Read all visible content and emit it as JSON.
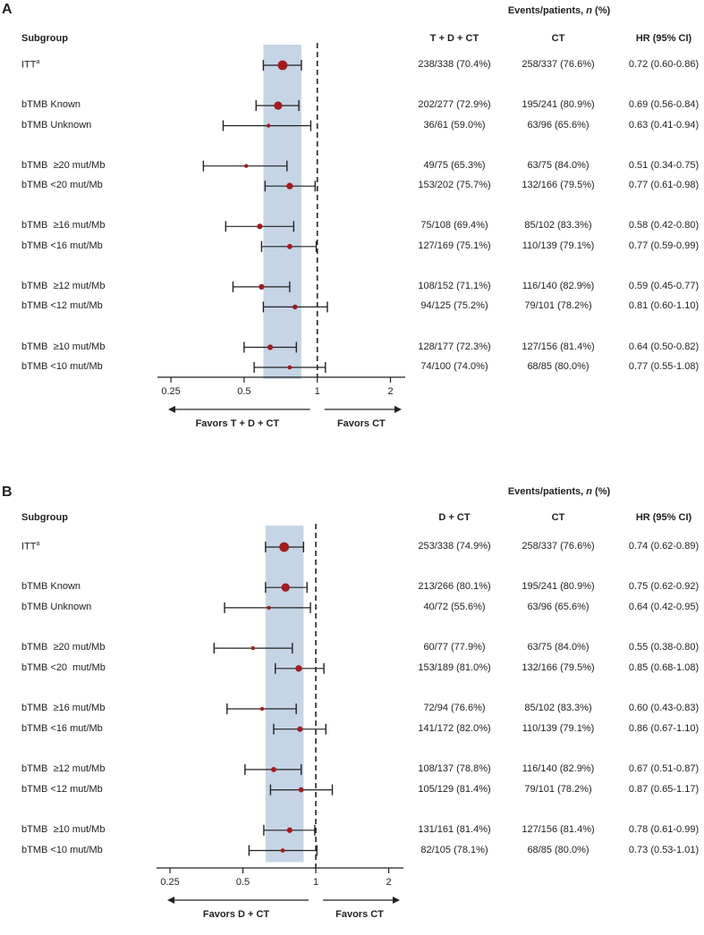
{
  "chart_data": [
    {
      "type": "forest",
      "panel_label": "A",
      "header": "Events/patients, n (%)",
      "header_parts": [
        "Events/patients, ",
        "n",
        " (%)"
      ],
      "subgroup_header": "Subgroup",
      "columns": [
        "T + D + CT",
        "CT",
        "HR (95% CI)"
      ],
      "xscale": "log",
      "xlim": [
        0.22,
        2.3
      ],
      "ticks": [
        0.25,
        0.5,
        1,
        2
      ],
      "tick_labels": [
        "0.25",
        "0.5",
        "1",
        "2"
      ],
      "reference_line": 1,
      "shaded_ci": [
        0.6,
        0.86
      ],
      "favors_left": "Favors T + D + CT",
      "favors_right": "Favors CT",
      "rows": [
        {
          "label": "ITT",
          "superscript": "a",
          "treatment": "238/338 (70.4%)",
          "control": "258/337 (76.6%)",
          "hr_text": "0.72 (0.60-0.86)",
          "hr": 0.72,
          "lo": 0.6,
          "hi": 0.86,
          "weight": 1.0,
          "group": 0
        },
        {
          "label": "bTMB Known",
          "treatment": "202/277 (72.9%)",
          "control": "195/241 (80.9%)",
          "hr_text": "0.69 (0.56-0.84)",
          "hr": 0.69,
          "lo": 0.56,
          "hi": 0.84,
          "weight": 0.8,
          "group": 1
        },
        {
          "label": "bTMB Unknown",
          "treatment": "36/61 (59.0%)",
          "control": "63/96 (65.6%)",
          "hr_text": "0.63 (0.41-0.94)",
          "hr": 0.63,
          "lo": 0.41,
          "hi": 0.94,
          "weight": 0.15,
          "group": 1
        },
        {
          "label": "bTMB  ≥20 mut/Mb",
          "treatment": "49/75 (65.3%)",
          "control": "63/75 (84.0%)",
          "hr_text": "0.51 (0.34-0.75)",
          "hr": 0.51,
          "lo": 0.34,
          "hi": 0.75,
          "weight": 0.15,
          "group": 2
        },
        {
          "label": "bTMB <20 mut/Mb",
          "treatment": "153/202 (75.7%)",
          "control": "132/166 (79.5%)",
          "hr_text": "0.77 (0.61-0.98)",
          "hr": 0.77,
          "lo": 0.61,
          "hi": 0.98,
          "weight": 0.55,
          "group": 2
        },
        {
          "label": "bTMB  ≥16 mut/Mb",
          "treatment": "75/108 (69.4%)",
          "control": "85/102 (83.3%)",
          "hr_text": "0.58 (0.42-0.80)",
          "hr": 0.58,
          "lo": 0.42,
          "hi": 0.8,
          "weight": 0.4,
          "group": 3
        },
        {
          "label": "bTMB <16 mut/Mb",
          "treatment": "127/169 (75.1%)",
          "control": "110/139 (79.1%)",
          "hr_text": "0.77 (0.59-0.99)",
          "hr": 0.77,
          "lo": 0.59,
          "hi": 0.99,
          "weight": 0.35,
          "group": 3
        },
        {
          "label": "bTMB  ≥12 mut/Mb",
          "treatment": "108/152 (71.1%)",
          "control": "116/140 (82.9%)",
          "hr_text": "0.59 (0.45-0.77)",
          "hr": 0.59,
          "lo": 0.45,
          "hi": 0.77,
          "weight": 0.4,
          "group": 4
        },
        {
          "label": "bTMB <12 mut/Mb",
          "treatment": "94/125 (75.2%)",
          "control": "79/101 (78.2%)",
          "hr_text": "0.81 (0.60-1.10)",
          "hr": 0.81,
          "lo": 0.6,
          "hi": 1.1,
          "weight": 0.3,
          "group": 4
        },
        {
          "label": "bTMB  ≥10 mut/Mb",
          "treatment": "128/177 (72.3%)",
          "control": "127/156 (81.4%)",
          "hr_text": "0.64 (0.50-0.82)",
          "hr": 0.64,
          "lo": 0.5,
          "hi": 0.82,
          "weight": 0.4,
          "group": 5
        },
        {
          "label": "bTMB <10 mut/Mb",
          "treatment": "74/100 (74.0%)",
          "control": "68/85 (80.0%)",
          "hr_text": "0.77 (0.55-1.08)",
          "hr": 0.77,
          "lo": 0.55,
          "hi": 1.08,
          "weight": 0.2,
          "group": 5
        }
      ]
    },
    {
      "type": "forest",
      "panel_label": "B",
      "header": "Events/patients, n (%)",
      "header_parts": [
        "Events/patients, ",
        "n",
        " (%)"
      ],
      "subgroup_header": "Subgroup",
      "columns": [
        "D + CT",
        "CT",
        "HR (95% CI)"
      ],
      "xscale": "log",
      "xlim": [
        0.22,
        2.3
      ],
      "ticks": [
        0.25,
        0.5,
        1,
        2
      ],
      "tick_labels": [
        "0.25",
        "0.5",
        "1",
        "2"
      ],
      "reference_line": 1,
      "shaded_ci": [
        0.62,
        0.89
      ],
      "favors_left": "Favors D + CT",
      "favors_right": "Favors CT",
      "rows": [
        {
          "label": "ITT",
          "superscript": "a",
          "treatment": "253/338 (74.9%)",
          "control": "258/337 (76.6%)",
          "hr_text": "0.74 (0.62-0.89)",
          "hr": 0.74,
          "lo": 0.62,
          "hi": 0.89,
          "weight": 1.0,
          "group": 0
        },
        {
          "label": "bTMB Known",
          "treatment": "213/266 (80.1%)",
          "control": "195/241 (80.9%)",
          "hr_text": "0.75 (0.62-0.92)",
          "hr": 0.75,
          "lo": 0.62,
          "hi": 0.92,
          "weight": 0.8,
          "group": 1
        },
        {
          "label": "bTMB Unknown",
          "treatment": "40/72 (55.6%)",
          "control": "63/96 (65.6%)",
          "hr_text": "0.64 (0.42-0.95)",
          "hr": 0.64,
          "lo": 0.42,
          "hi": 0.95,
          "weight": 0.15,
          "group": 1
        },
        {
          "label": "bTMB  ≥20 mut/Mb",
          "treatment": "60/77 (77.9%)",
          "control": "63/75 (84.0%)",
          "hr_text": "0.55 (0.38-0.80)",
          "hr": 0.55,
          "lo": 0.38,
          "hi": 0.8,
          "weight": 0.15,
          "group": 2
        },
        {
          "label": "bTMB <20  mut/Mb",
          "treatment": "153/189 (81.0%)",
          "control": "132/166 (79.5%)",
          "hr_text": "0.85 (0.68-1.08)",
          "hr": 0.85,
          "lo": 0.68,
          "hi": 1.08,
          "weight": 0.55,
          "group": 2
        },
        {
          "label": "bTMB  ≥16 mut/Mb",
          "treatment": "72/94 (76.6%)",
          "control": "85/102 (83.3%)",
          "hr_text": "0.60 (0.43-0.83)",
          "hr": 0.6,
          "lo": 0.43,
          "hi": 0.83,
          "weight": 0.15,
          "group": 3
        },
        {
          "label": "bTMB <16 mut/Mb",
          "treatment": "141/172 (82.0%)",
          "control": "110/139 (79.1%)",
          "hr_text": "0.86 (0.67-1.10)",
          "hr": 0.86,
          "lo": 0.67,
          "hi": 1.1,
          "weight": 0.4,
          "group": 3
        },
        {
          "label": "bTMB  ≥12 mut/Mb",
          "treatment": "108/137 (78.8%)",
          "control": "116/140 (82.9%)",
          "hr_text": "0.67 (0.51-0.87)",
          "hr": 0.67,
          "lo": 0.51,
          "hi": 0.87,
          "weight": 0.35,
          "group": 4
        },
        {
          "label": "bTMB <12 mut/Mb",
          "treatment": "105/129 (81.4%)",
          "control": "79/101 (78.2%)",
          "hr_text": "0.87 (0.65-1.17)",
          "hr": 0.87,
          "lo": 0.65,
          "hi": 1.17,
          "weight": 0.35,
          "group": 4
        },
        {
          "label": "bTMB  ≥10 mut/Mb",
          "treatment": "131/161 (81.4%)",
          "control": "127/156 (81.4%)",
          "hr_text": "0.78 (0.61-0.99)",
          "hr": 0.78,
          "lo": 0.61,
          "hi": 0.99,
          "weight": 0.4,
          "group": 5
        },
        {
          "label": "bTMB <10 mut/Mb",
          "treatment": "82/105 (78.1%)",
          "control": "68/85 (80.0%)",
          "hr_text": "0.73 (0.53-1.01)",
          "hr": 0.73,
          "lo": 0.53,
          "hi": 1.01,
          "weight": 0.2,
          "group": 5
        }
      ]
    }
  ],
  "colors": {
    "marker": "#a31b1f",
    "shade": "#c5d5e6",
    "line": "#222222"
  }
}
